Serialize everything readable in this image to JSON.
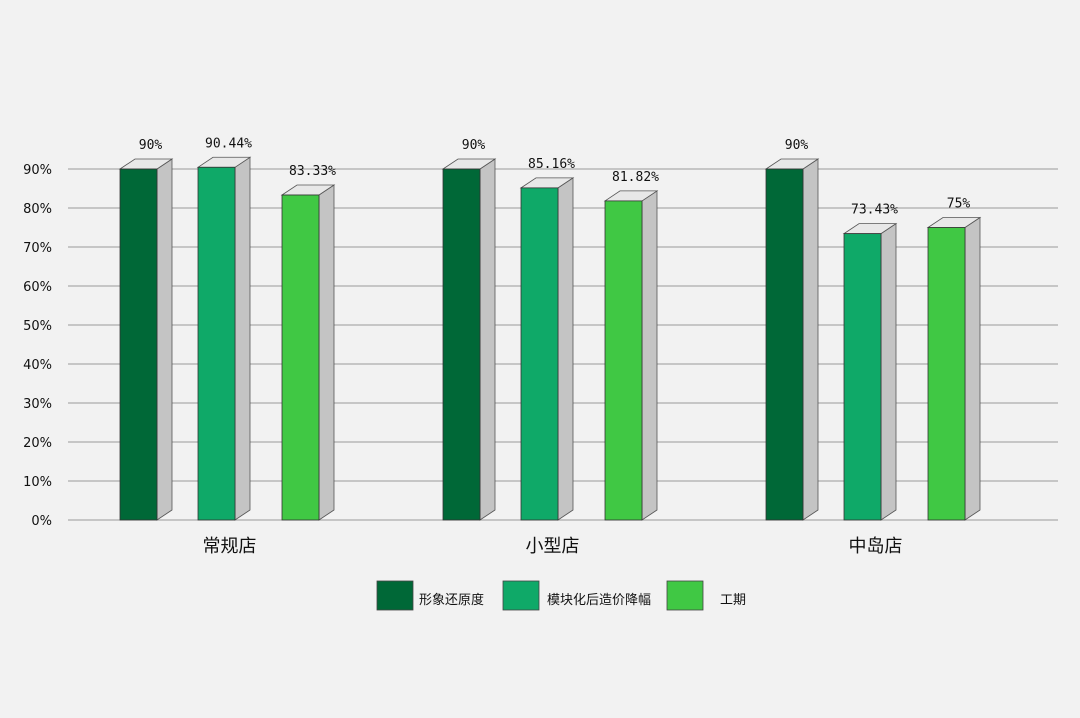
{
  "chart_data": {
    "type": "bar",
    "title": "",
    "xlabel": "",
    "ylabel": "",
    "ylim": [
      0,
      90
    ],
    "yticks": [
      "0%",
      "10%",
      "20%",
      "30%",
      "40%",
      "50%",
      "60%",
      "70%",
      "80%",
      "90%"
    ],
    "grid": true,
    "style": "3d-column",
    "legend_position": "bottom",
    "categories": [
      "常规店",
      "小型店",
      "中岛店"
    ],
    "series": [
      {
        "name": "形象还原度",
        "color": "#006837",
        "values": [
          90,
          90,
          90
        ],
        "labels": [
          "90%",
          "90%",
          "90%"
        ]
      },
      {
        "name": "模块化后造价降幅",
        "color": "#0fa968",
        "values": [
          90.44,
          85.16,
          73.43
        ],
        "labels": [
          "90.44%",
          "85.16%",
          "73.43%"
        ]
      },
      {
        "name": "工期",
        "color": "#40c844",
        "values": [
          83.33,
          81.82,
          75
        ],
        "labels": [
          "83.33%",
          "81.82%",
          "75%"
        ]
      }
    ]
  },
  "colors": {
    "background": "#f2f2f2",
    "grid": "#999999",
    "side": "#c4c4c4",
    "top": "#e8e8e8"
  }
}
